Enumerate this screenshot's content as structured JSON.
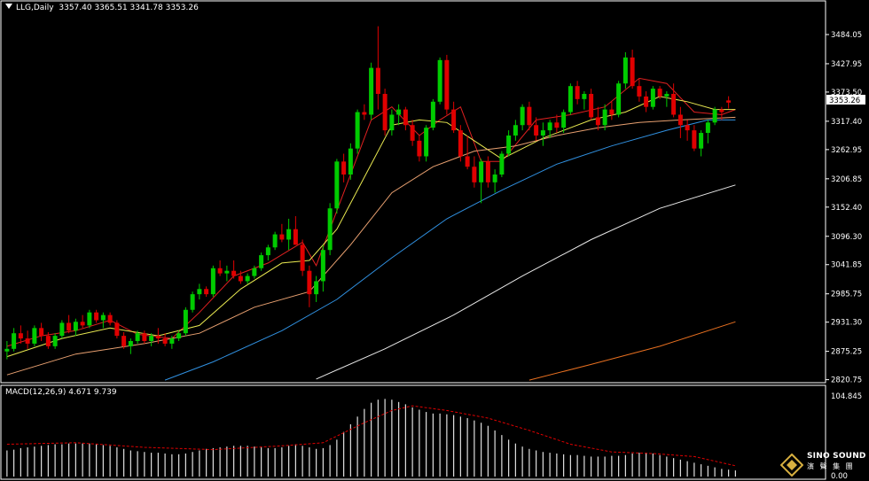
{
  "header": {
    "symbol_label": "LLG,Daily",
    "ohlc_label": "3357.40 3365.51 3341.78 3353.26"
  },
  "macd_header": {
    "label": "MACD(12,26,9)",
    "values_label": "4.671 9.739"
  },
  "logo": {
    "text": "SINO SOUND",
    "subtext": "演 聲 集 團"
  },
  "colors": {
    "background": "#000000",
    "bull": "#00cc00",
    "bear": "#e00000",
    "ma_red": "#e02020",
    "ma_yellow": "#e8e850",
    "ma_orange": "#e8a070",
    "ma_blue": "#3090e0",
    "ma_white": "#e8e8e8",
    "ma_orange2": "#e87020",
    "macd_hist": "#e0e0e0",
    "macd_signal": "#e00000",
    "axis_text": "#ffffff",
    "frame": "#ffffff"
  },
  "chart_data": [
    {
      "type": "candlestick",
      "title": "LLG,Daily",
      "last_price_label": "3353.26",
      "y_ticks": [
        "3484.05",
        "3427.95",
        "3373.50",
        "3317.40",
        "3262.95",
        "3206.85",
        "3152.40",
        "3096.30",
        "3041.85",
        "2985.75",
        "2931.30",
        "2875.25",
        "2820.75"
      ],
      "ylim": [
        2815,
        3530
      ],
      "candles": [
        [
          2875,
          2895,
          2860,
          2880
        ],
        [
          2880,
          2920,
          2875,
          2910
        ],
        [
          2910,
          2925,
          2890,
          2900
        ],
        [
          2900,
          2915,
          2880,
          2890
        ],
        [
          2890,
          2925,
          2885,
          2920
        ],
        [
          2920,
          2930,
          2895,
          2905
        ],
        [
          2905,
          2912,
          2880,
          2885
        ],
        [
          2885,
          2910,
          2880,
          2905
        ],
        [
          2905,
          2935,
          2900,
          2930
        ],
        [
          2930,
          2945,
          2910,
          2915
        ],
        [
          2915,
          2938,
          2905,
          2932
        ],
        [
          2932,
          2945,
          2920,
          2925
        ],
        [
          2925,
          2955,
          2920,
          2950
        ],
        [
          2950,
          2955,
          2930,
          2935
        ],
        [
          2935,
          2950,
          2920,
          2945
        ],
        [
          2945,
          2950,
          2925,
          2930
        ],
        [
          2930,
          2935,
          2900,
          2905
        ],
        [
          2905,
          2912,
          2880,
          2885
        ],
        [
          2885,
          2900,
          2870,
          2895
        ],
        [
          2895,
          2915,
          2890,
          2910
        ],
        [
          2910,
          2915,
          2890,
          2895
        ],
        [
          2895,
          2910,
          2885,
          2905
        ],
        [
          2905,
          2920,
          2890,
          2900
        ],
        [
          2900,
          2910,
          2885,
          2890
        ],
        [
          2890,
          2905,
          2880,
          2900
        ],
        [
          2900,
          2915,
          2895,
          2910
        ],
        [
          2910,
          2960,
          2905,
          2955
        ],
        [
          2955,
          2990,
          2950,
          2985
        ],
        [
          2985,
          3005,
          2975,
          2995
        ],
        [
          2995,
          3000,
          2980,
          2985
        ],
        [
          2985,
          3040,
          2980,
          3035
        ],
        [
          3035,
          3050,
          3020,
          3025
        ],
        [
          3025,
          3040,
          3010,
          3030
        ],
        [
          3030,
          3050,
          3015,
          3020
        ],
        [
          3020,
          3030,
          3005,
          3010
        ],
        [
          3010,
          3025,
          3005,
          3020
        ],
        [
          3020,
          3040,
          3015,
          3035
        ],
        [
          3035,
          3065,
          3030,
          3060
        ],
        [
          3060,
          3080,
          3050,
          3075
        ],
        [
          3075,
          3105,
          3070,
          3100
        ],
        [
          3100,
          3120,
          3085,
          3090
        ],
        [
          3090,
          3130,
          3070,
          3110
        ],
        [
          3110,
          3135,
          3080,
          3080
        ],
        [
          3080,
          3090,
          3020,
          3030
        ],
        [
          3030,
          3040,
          2960,
          2985
        ],
        [
          2985,
          3020,
          2970,
          3010
        ],
        [
          3010,
          3080,
          2990,
          3070
        ],
        [
          3070,
          3160,
          3060,
          3150
        ],
        [
          3150,
          3245,
          3140,
          3240
        ],
        [
          3240,
          3255,
          3200,
          3215
        ],
        [
          3215,
          3275,
          3205,
          3265
        ],
        [
          3265,
          3340,
          3255,
          3335
        ],
        [
          3335,
          3350,
          3320,
          3330
        ],
        [
          3330,
          3430,
          3320,
          3420
        ],
        [
          3420,
          3500,
          3340,
          3370
        ],
        [
          3370,
          3380,
          3290,
          3300
        ],
        [
          3300,
          3340,
          3290,
          3330
        ],
        [
          3330,
          3350,
          3310,
          3340
        ],
        [
          3340,
          3345,
          3300,
          3310
        ],
        [
          3310,
          3320,
          3270,
          3280
        ],
        [
          3280,
          3290,
          3240,
          3250
        ],
        [
          3250,
          3310,
          3240,
          3305
        ],
        [
          3305,
          3360,
          3300,
          3355
        ],
        [
          3355,
          3440,
          3350,
          3435
        ],
        [
          3435,
          3445,
          3330,
          3340
        ],
        [
          3340,
          3355,
          3295,
          3300
        ],
        [
          3300,
          3310,
          3240,
          3250
        ],
        [
          3250,
          3290,
          3225,
          3230
        ],
        [
          3230,
          3250,
          3190,
          3200
        ],
        [
          3200,
          3245,
          3160,
          3240
        ],
        [
          3240,
          3250,
          3190,
          3200
        ],
        [
          3200,
          3225,
          3180,
          3215
        ],
        [
          3215,
          3260,
          3210,
          3255
        ],
        [
          3255,
          3300,
          3250,
          3290
        ],
        [
          3290,
          3320,
          3280,
          3310
        ],
        [
          3310,
          3350,
          3300,
          3345
        ],
        [
          3345,
          3355,
          3300,
          3310
        ],
        [
          3310,
          3325,
          3280,
          3290
        ],
        [
          3290,
          3315,
          3270,
          3300
        ],
        [
          3300,
          3320,
          3285,
          3315
        ],
        [
          3315,
          3330,
          3295,
          3305
        ],
        [
          3305,
          3340,
          3295,
          3335
        ],
        [
          3335,
          3390,
          3330,
          3385
        ],
        [
          3385,
          3395,
          3350,
          3360
        ],
        [
          3360,
          3375,
          3340,
          3370
        ],
        [
          3370,
          3380,
          3320,
          3325
        ],
        [
          3325,
          3345,
          3300,
          3310
        ],
        [
          3310,
          3350,
          3300,
          3340
        ],
        [
          3340,
          3355,
          3320,
          3330
        ],
        [
          3330,
          3395,
          3325,
          3390
        ],
        [
          3390,
          3450,
          3380,
          3440
        ],
        [
          3440,
          3455,
          3380,
          3385
        ],
        [
          3385,
          3400,
          3355,
          3365
        ],
        [
          3365,
          3375,
          3335,
          3345
        ],
        [
          3345,
          3385,
          3340,
          3380
        ],
        [
          3380,
          3385,
          3360,
          3365
        ],
        [
          3365,
          3375,
          3345,
          3370
        ],
        [
          3370,
          3390,
          3325,
          3330
        ],
        [
          3330,
          3345,
          3285,
          3310
        ],
        [
          3310,
          3320,
          3280,
          3300
        ],
        [
          3300,
          3310,
          3260,
          3265
        ],
        [
          3265,
          3300,
          3250,
          3295
        ],
        [
          3295,
          3320,
          3275,
          3315
        ],
        [
          3315,
          3345,
          3310,
          3340
        ],
        [
          3340,
          3345,
          3320,
          3335
        ],
        [
          3357.4,
          3365.51,
          3341.78,
          3353.26
        ]
      ],
      "moving_averages": [
        {
          "name": "MA5",
          "color_key": "ma_red",
          "points": [
            [
              0,
              2885
            ],
            [
              5,
              2905
            ],
            [
              10,
              2915
            ],
            [
              15,
              2935
            ],
            [
              19,
              2908
            ],
            [
              24,
              2900
            ],
            [
              28,
              2950
            ],
            [
              33,
              3020
            ],
            [
              38,
              3045
            ],
            [
              43,
              3085
            ],
            [
              45,
              3040
            ],
            [
              49,
              3180
            ],
            [
              53,
              3320
            ],
            [
              56,
              3345
            ],
            [
              60,
              3290
            ],
            [
              63,
              3320
            ],
            [
              66,
              3345
            ],
            [
              69,
              3240
            ],
            [
              72,
              3240
            ],
            [
              77,
              3320
            ],
            [
              82,
              3330
            ],
            [
              87,
              3345
            ],
            [
              92,
              3400
            ],
            [
              96,
              3390
            ],
            [
              100,
              3335
            ],
            [
              104,
              3330
            ],
            [
              106,
              3340
            ]
          ]
        },
        {
          "name": "MA10",
          "color_key": "ma_yellow",
          "points": [
            [
              0,
              2865
            ],
            [
              8,
              2900
            ],
            [
              15,
              2920
            ],
            [
              22,
              2905
            ],
            [
              28,
              2925
            ],
            [
              34,
              2995
            ],
            [
              40,
              3045
            ],
            [
              44,
              3050
            ],
            [
              48,
              3110
            ],
            [
              52,
              3210
            ],
            [
              56,
              3310
            ],
            [
              60,
              3320
            ],
            [
              64,
              3315
            ],
            [
              68,
              3280
            ],
            [
              72,
              3245
            ],
            [
              78,
              3285
            ],
            [
              85,
              3320
            ],
            [
              90,
              3335
            ],
            [
              95,
              3365
            ],
            [
              99,
              3355
            ],
            [
              103,
              3340
            ],
            [
              106,
              3340
            ]
          ]
        },
        {
          "name": "MA20",
          "color_key": "ma_orange",
          "points": [
            [
              0,
              2830
            ],
            [
              10,
              2870
            ],
            [
              20,
              2890
            ],
            [
              28,
              2910
            ],
            [
              36,
              2960
            ],
            [
              44,
              2990
            ],
            [
              50,
              3080
            ],
            [
              56,
              3180
            ],
            [
              62,
              3230
            ],
            [
              68,
              3260
            ],
            [
              74,
              3270
            ],
            [
              80,
              3290
            ],
            [
              86,
              3305
            ],
            [
              92,
              3315
            ],
            [
              98,
              3320
            ],
            [
              106,
              3325
            ]
          ]
        },
        {
          "name": "MA30",
          "color_key": "ma_blue",
          "points": [
            [
              23,
              2820
            ],
            [
              30,
              2855
            ],
            [
              40,
              2915
            ],
            [
              48,
              2975
            ],
            [
              56,
              3055
            ],
            [
              64,
              3130
            ],
            [
              72,
              3185
            ],
            [
              80,
              3235
            ],
            [
              88,
              3270
            ],
            [
              96,
              3300
            ],
            [
              102,
              3320
            ],
            [
              106,
              3320
            ]
          ]
        },
        {
          "name": "MA60",
          "color_key": "ma_white",
          "points": [
            [
              45,
              2822
            ],
            [
              55,
              2880
            ],
            [
              65,
              2945
            ],
            [
              75,
              3020
            ],
            [
              85,
              3090
            ],
            [
              95,
              3150
            ],
            [
              106,
              3195
            ]
          ]
        },
        {
          "name": "MA120",
          "color_key": "ma_orange2",
          "points": [
            [
              76,
              2820
            ],
            [
              85,
              2850
            ],
            [
              95,
              2885
            ],
            [
              106,
              2932
            ]
          ]
        }
      ]
    },
    {
      "type": "bar",
      "title": "MACD(12,26,9)",
      "y_ticks": [
        "104.845",
        "0.00"
      ],
      "ylim": [
        0,
        104.845
      ],
      "histogram": [
        34,
        35,
        37,
        38,
        39,
        40,
        41,
        42,
        42,
        43,
        43,
        43,
        43,
        42,
        41,
        40,
        38,
        36,
        34,
        33,
        32,
        31,
        31,
        30,
        29,
        29,
        30,
        32,
        34,
        36,
        37,
        38,
        39,
        40,
        40,
        40,
        39,
        38,
        37,
        37,
        38,
        40,
        42,
        40,
        38,
        36,
        37,
        41,
        48,
        58,
        68,
        78,
        88,
        96,
        100,
        101,
        100,
        97,
        94,
        90,
        87,
        84,
        82,
        82,
        81,
        80,
        78,
        76,
        73,
        70,
        66,
        60,
        54,
        48,
        43,
        39,
        36,
        34,
        32,
        31,
        30,
        29,
        28,
        28,
        27,
        26,
        26,
        26,
        27,
        27,
        28,
        30,
        31,
        31,
        30,
        28,
        26,
        24,
        22,
        20,
        18,
        16,
        14,
        12,
        10,
        9,
        8
      ],
      "signal_points": [
        [
          0,
          42
        ],
        [
          10,
          44
        ],
        [
          20,
          38
        ],
        [
          30,
          35
        ],
        [
          40,
          40
        ],
        [
          46,
          44
        ],
        [
          52,
          70
        ],
        [
          56,
          86
        ],
        [
          59,
          92
        ],
        [
          64,
          86
        ],
        [
          70,
          76
        ],
        [
          76,
          60
        ],
        [
          82,
          42
        ],
        [
          88,
          32
        ],
        [
          94,
          30
        ],
        [
          100,
          26
        ],
        [
          106,
          14
        ]
      ]
    }
  ]
}
